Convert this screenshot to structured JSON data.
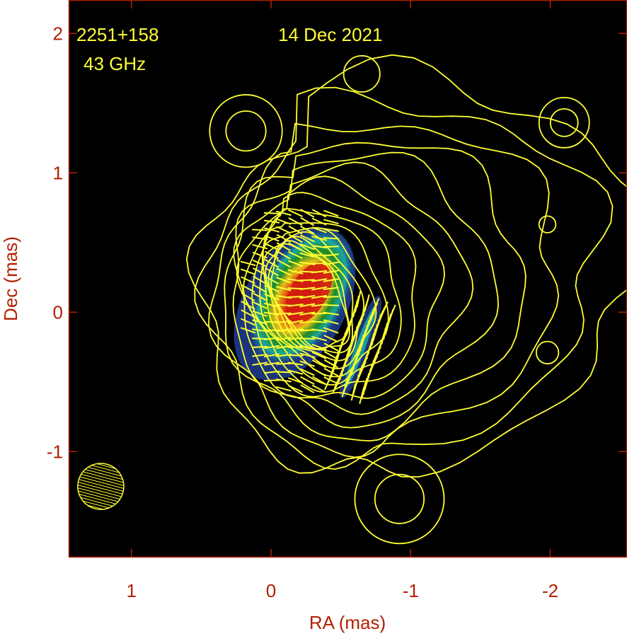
{
  "chart_data": {
    "type": "heatmap",
    "subtype": "radio-polarization-map",
    "annotations": {
      "source": "2251+158",
      "frequency": "43 GHz",
      "date": "14 Dec 2021"
    },
    "xlabel": "RA (mas)",
    "ylabel": "Dec (mas)",
    "xlim": [
      1.45,
      -2.55
    ],
    "ylim": [
      -1.76,
      2.24
    ],
    "x_ticks": [
      1,
      0,
      -1,
      -2
    ],
    "x_tick_labels": [
      "1",
      "0",
      "-1",
      "-2"
    ],
    "y_ticks": [
      2,
      1,
      0,
      -1
    ],
    "y_tick_labels": [
      "2",
      "1",
      "0",
      "-1"
    ],
    "grid": false,
    "background_color": "#000000",
    "frame_color": "#b22000",
    "contour_color": "#ffff33",
    "vector_color": "#ffff33",
    "colormap": [
      "#1e3a8a",
      "#19a7a0",
      "#1f8a28",
      "#e6c21a",
      "#d01c10"
    ],
    "beam": {
      "ra": 1.22,
      "dec": -1.25,
      "major": 0.33,
      "minor": 0.18,
      "pa_deg": 15
    },
    "core": {
      "ra": -0.22,
      "dec": 0.11,
      "pa_deg": 30
    },
    "pol_ridge": {
      "start": [
        -0.53,
        -0.55
      ],
      "end": [
        -0.75,
        0.05
      ]
    },
    "extra_contours": [
      {
        "ra": 0.18,
        "dec": 1.3,
        "rx": 0.16,
        "ry": 0.26
      },
      {
        "ra": -0.65,
        "dec": 1.71,
        "rx": 0.05,
        "ry": 0.13
      },
      {
        "ra": -2.1,
        "dec": 1.36,
        "rx": 0.07,
        "ry": 0.18
      },
      {
        "ra": -1.98,
        "dec": 0.63,
        "rx": 0.03,
        "ry": 0.06
      },
      {
        "ra": -1.98,
        "dec": -0.29,
        "rx": 0.04,
        "ry": 0.08
      },
      {
        "ra": -0.92,
        "dec": -1.34,
        "rx": 0.13,
        "ry": 0.32
      }
    ]
  }
}
